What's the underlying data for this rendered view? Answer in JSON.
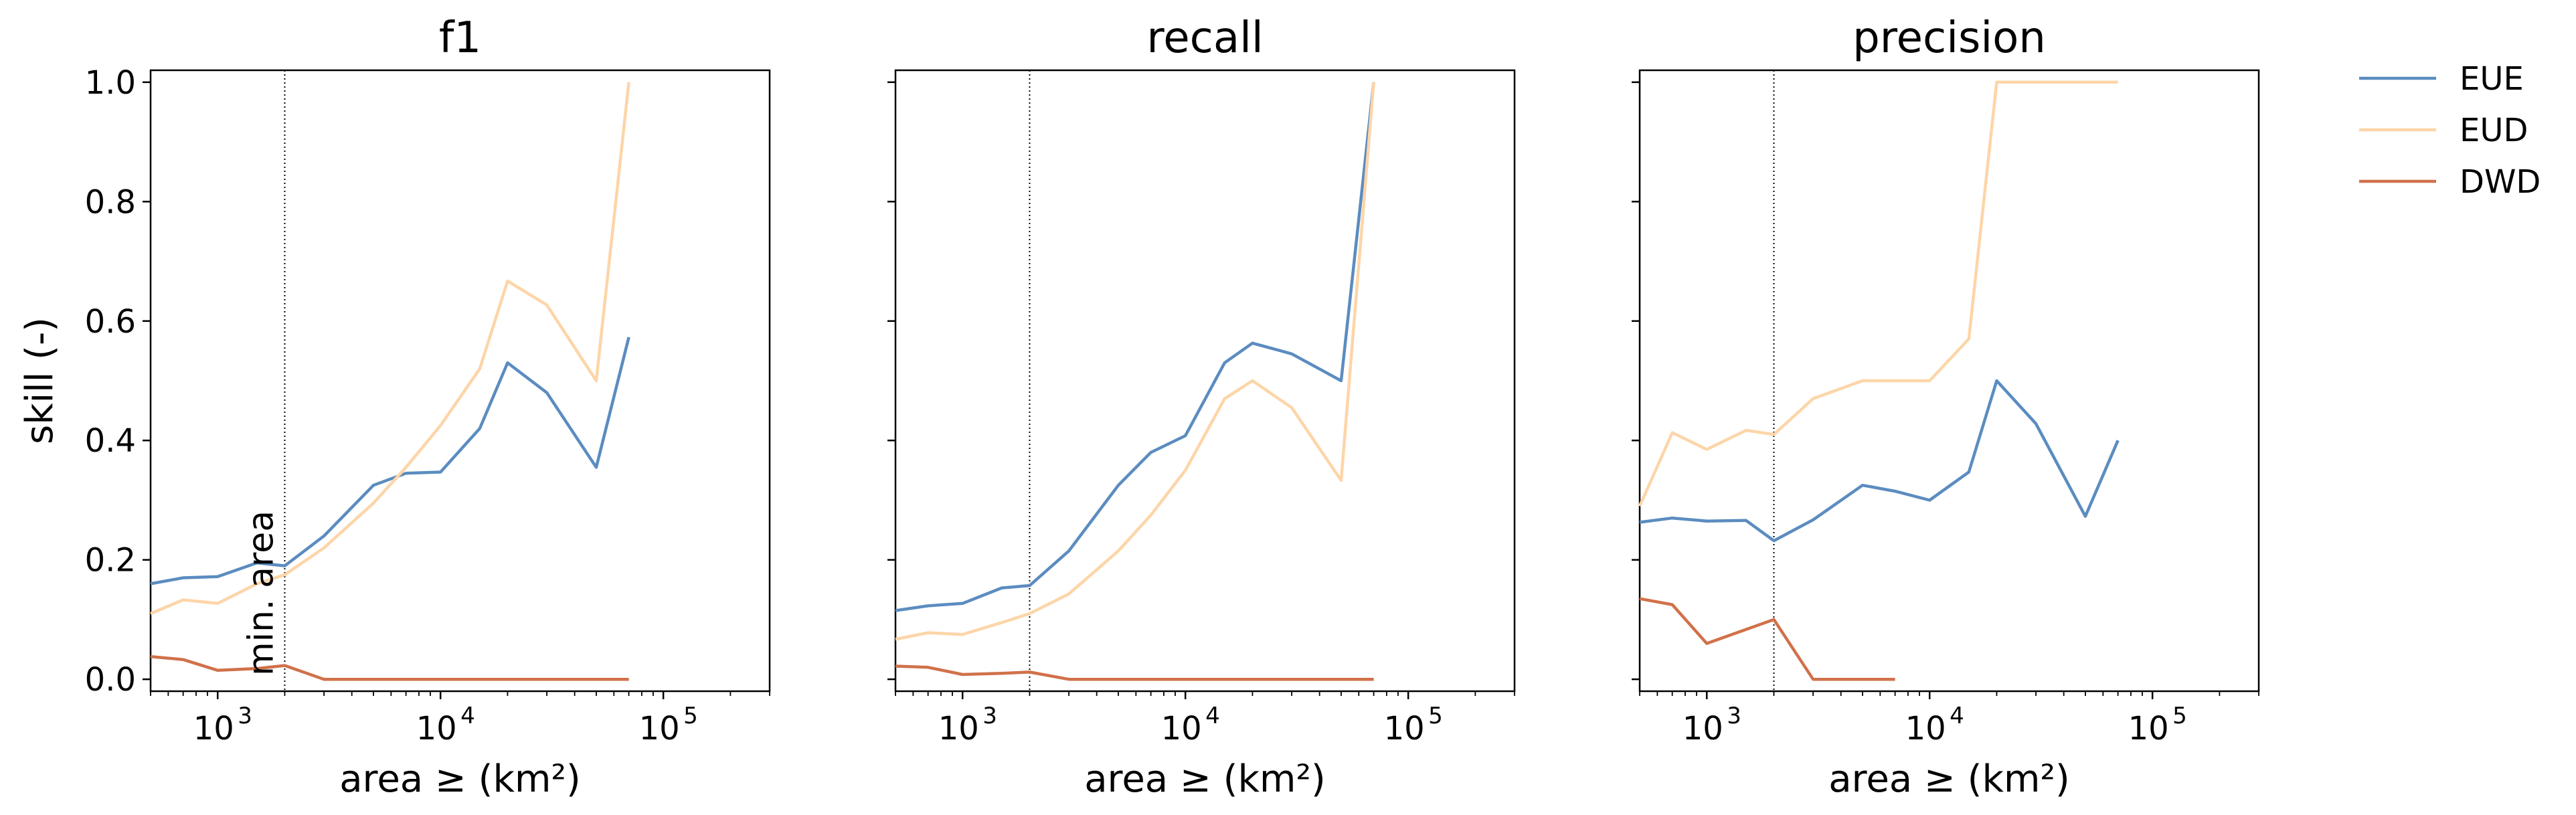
{
  "chart_data": [
    {
      "type": "line",
      "title": "f1",
      "xlabel": "area ≥ (km²)",
      "ylabel": "skill (-)",
      "xscale": "log",
      "xlim": [
        500,
        300000
      ],
      "ylim": [
        -0.02,
        1.02
      ],
      "annotation": "min. area",
      "min_area_line_x": 2000,
      "series": [
        {
          "name": "EUE",
          "x": [
            500,
            700,
            1000,
            1500,
            2000,
            3000,
            5000,
            7000,
            10000,
            15000,
            20000,
            30000,
            50000,
            70000
          ],
          "y": [
            0.16,
            0.17,
            0.172,
            0.195,
            0.19,
            0.24,
            0.325,
            0.345,
            0.347,
            0.42,
            0.53,
            0.48,
            0.355,
            0.573
          ]
        },
        {
          "name": "EUD",
          "x": [
            500,
            700,
            1000,
            1500,
            2000,
            3000,
            5000,
            7000,
            10000,
            15000,
            20000,
            30000,
            50000,
            70000
          ],
          "y": [
            0.11,
            0.133,
            0.127,
            0.16,
            0.175,
            0.22,
            0.295,
            0.355,
            0.425,
            0.52,
            0.667,
            0.627,
            0.5,
            1.0
          ]
        },
        {
          "name": "DWD",
          "x": [
            500,
            700,
            1000,
            1500,
            2000,
            3000,
            5000,
            7000,
            10000,
            15000,
            20000,
            30000,
            50000,
            70000
          ],
          "y": [
            0.038,
            0.033,
            0.015,
            0.018,
            0.023,
            0.0,
            0.0,
            0.0,
            0.0,
            0.0,
            0.0,
            0.0,
            0.0,
            0.0
          ]
        }
      ]
    },
    {
      "type": "line",
      "title": "recall",
      "xlabel": "area ≥ (km²)",
      "ylabel": "",
      "xscale": "log",
      "xlim": [
        500,
        300000
      ],
      "ylim": [
        -0.02,
        1.02
      ],
      "min_area_line_x": 2000,
      "series": [
        {
          "name": "EUE",
          "x": [
            500,
            700,
            1000,
            1500,
            2000,
            3000,
            5000,
            7000,
            10000,
            15000,
            20000,
            30000,
            50000,
            70000
          ],
          "y": [
            0.115,
            0.123,
            0.127,
            0.153,
            0.157,
            0.215,
            0.325,
            0.38,
            0.408,
            0.53,
            0.563,
            0.545,
            0.5,
            1.0
          ]
        },
        {
          "name": "EUD",
          "x": [
            500,
            700,
            1000,
            1500,
            2000,
            3000,
            5000,
            7000,
            10000,
            15000,
            20000,
            30000,
            50000,
            70000
          ],
          "y": [
            0.067,
            0.078,
            0.075,
            0.095,
            0.11,
            0.143,
            0.215,
            0.275,
            0.35,
            0.47,
            0.5,
            0.455,
            0.333,
            1.0
          ]
        },
        {
          "name": "DWD",
          "x": [
            500,
            700,
            1000,
            1500,
            2000,
            3000,
            5000,
            7000,
            10000,
            15000,
            20000,
            30000,
            50000,
            70000
          ],
          "y": [
            0.022,
            0.02,
            0.008,
            0.01,
            0.012,
            0.0,
            0.0,
            0.0,
            0.0,
            0.0,
            0.0,
            0.0,
            0.0,
            0.0
          ]
        }
      ]
    },
    {
      "type": "line",
      "title": "precision",
      "xlabel": "area ≥ (km²)",
      "ylabel": "",
      "xscale": "log",
      "xlim": [
        500,
        300000
      ],
      "ylim": [
        -0.02,
        1.02
      ],
      "min_area_line_x": 2000,
      "series": [
        {
          "name": "EUE",
          "x": [
            500,
            700,
            1000,
            1500,
            2000,
            3000,
            5000,
            7000,
            10000,
            15000,
            20000,
            30000,
            50000,
            70000
          ],
          "y": [
            0.263,
            0.27,
            0.265,
            0.266,
            0.232,
            0.267,
            0.325,
            0.315,
            0.3,
            0.347,
            0.5,
            0.428,
            0.273,
            0.4
          ]
        },
        {
          "name": "EUD",
          "x": [
            500,
            700,
            1000,
            1500,
            2000,
            3000,
            5000,
            7000,
            10000,
            15000,
            20000,
            30000,
            50000,
            70000
          ],
          "y": [
            0.29,
            0.413,
            0.385,
            0.417,
            0.41,
            0.47,
            0.5,
            0.5,
            0.5,
            0.57,
            1.0,
            1.0,
            1.0,
            1.0
          ]
        },
        {
          "name": "DWD",
          "x": [
            500,
            700,
            1000,
            2000,
            3000,
            5000,
            7000
          ],
          "y": [
            0.135,
            0.125,
            0.06,
            0.1,
            0.0,
            0.0,
            0.0
          ]
        }
      ]
    }
  ],
  "y_ticks": [
    "0.0",
    "0.2",
    "0.4",
    "0.6",
    "0.8",
    "1.0"
  ],
  "x_ticks": [
    {
      "value": 1000,
      "base": "10",
      "exp": "3"
    },
    {
      "value": 10000,
      "base": "10",
      "exp": "4"
    },
    {
      "value": 100000,
      "base": "10",
      "exp": "5"
    }
  ],
  "legend": {
    "placement": "outside-top-right",
    "entries": [
      {
        "label": "EUE",
        "color": "#5b8cc0"
      },
      {
        "label": "EUD",
        "color": "#fdd5a8"
      },
      {
        "label": "DWD",
        "color": "#d0714a"
      }
    ]
  },
  "colors": {
    "EUE": "#5b8cc0",
    "EUD": "#fdd5a8",
    "DWD": "#d0714a"
  }
}
